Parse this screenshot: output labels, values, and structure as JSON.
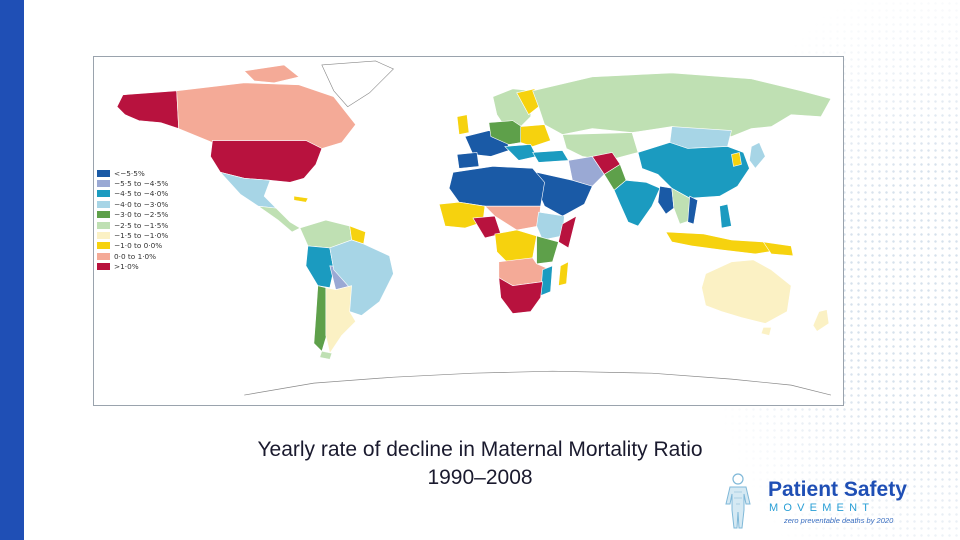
{
  "caption": {
    "line1": "Yearly rate of decline in Maternal Mortality Ratio",
    "line2": "1990–2008"
  },
  "legend": [
    {
      "label": "<−5·5%",
      "color": "#1a5aa6"
    },
    {
      "label": "−5·5 to −4·5%",
      "color": "#9aa9d4"
    },
    {
      "label": "−4·5 to −4·0%",
      "color": "#1b9bc0"
    },
    {
      "label": "−4·0 to −3·0%",
      "color": "#a7d5e6"
    },
    {
      "label": "−3·0 to −2·5%",
      "color": "#5ea04a"
    },
    {
      "label": "−2·5 to −1·5%",
      "color": "#bfe0b3"
    },
    {
      "label": "−1·5 to −1·0%",
      "color": "#fbf1c4"
    },
    {
      "label": "−1·0 to 0·0%",
      "color": "#f6d20e"
    },
    {
      "label": "0·0 to 1·0%",
      "color": "#f4aa97"
    },
    {
      "label": ">1·0%",
      "color": "#b8123e"
    }
  ],
  "logo": {
    "name": "Patient Safety",
    "movement": "MOVEMENT",
    "tagline": "zero preventable deaths by 2020"
  },
  "colors": {
    "accent_bar": "#1f4fb5",
    "logo_blue": "#1f4fb5",
    "logo_cyan": "#2a9fd6"
  }
}
